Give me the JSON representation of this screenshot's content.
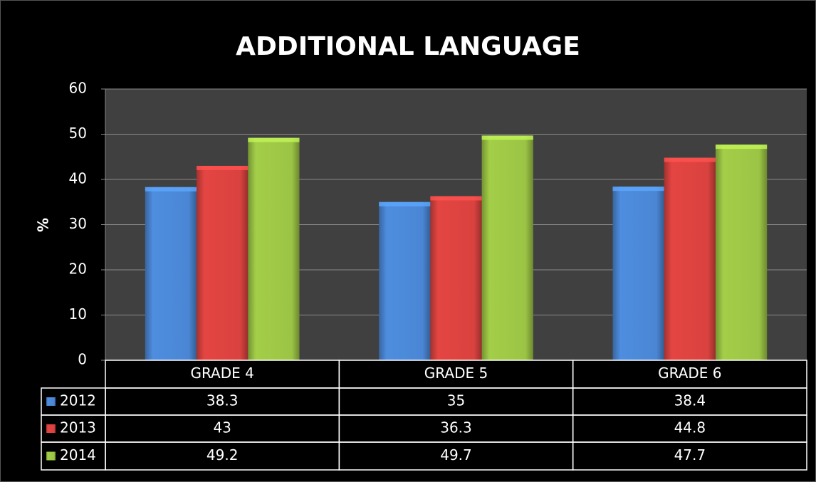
{
  "chart_data": {
    "type": "bar",
    "title": "ADDITIONAL LANGUAGE",
    "y_label": "%",
    "categories": [
      "GRADE 4",
      "GRADE 5",
      "GRADE 6"
    ],
    "series": [
      {
        "name": "2012",
        "color": "#4a86d4",
        "values": [
          38.3,
          35,
          38.4
        ]
      },
      {
        "name": "2013",
        "color": "#d9423f",
        "values": [
          43,
          36.3,
          44.8
        ]
      },
      {
        "name": "2014",
        "color": "#9bc445",
        "values": [
          49.2,
          49.7,
          47.7
        ]
      }
    ],
    "ylim": [
      0,
      60
    ],
    "yticks": [
      0,
      10,
      20,
      30,
      40,
      50,
      60
    ],
    "grid": true,
    "data_table": true
  }
}
